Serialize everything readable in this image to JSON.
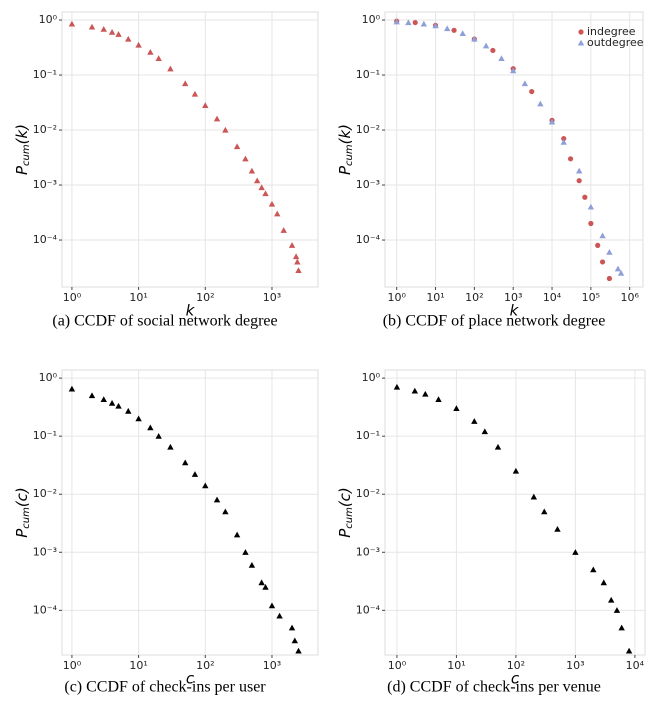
{
  "chart_data": [
    {
      "type": "scatter",
      "caption": "(a) CCDF of social network degree",
      "xlabel": "k",
      "ylabel": [
        "P",
        "cum",
        "(k)"
      ],
      "log_x": true,
      "log_y": true,
      "grid": true,
      "xlim": [
        0.71,
        4900
      ],
      "ylim": [
        1.4e-05,
        1.4
      ],
      "xticks": [
        {
          "value": 1,
          "label": "10⁰"
        },
        {
          "value": 10,
          "label": "10¹"
        },
        {
          "value": 100,
          "label": "10²"
        },
        {
          "value": 1000,
          "label": "10³"
        }
      ],
      "yticks": [
        {
          "value": 1,
          "label": "10⁰"
        },
        {
          "value": 0.1,
          "label": "10⁻¹"
        },
        {
          "value": 0.01,
          "label": "10⁻²"
        },
        {
          "value": 0.001,
          "label": "10⁻³"
        },
        {
          "value": 0.0001,
          "label": "10⁻⁴"
        }
      ],
      "series": [
        {
          "color": "#cc5555",
          "marker": "triangle",
          "x": [
            1,
            2,
            3,
            4,
            5,
            7,
            10,
            15,
            20,
            30,
            50,
            70,
            100,
            150,
            200,
            300,
            400,
            500,
            600,
            700,
            800,
            1000,
            1200,
            1500,
            2000,
            2300,
            2400,
            2500
          ],
          "values": [
            0.85,
            0.75,
            0.68,
            0.6,
            0.55,
            0.45,
            0.35,
            0.26,
            0.2,
            0.13,
            0.07,
            0.045,
            0.028,
            0.016,
            0.01,
            0.005,
            0.003,
            0.0018,
            0.0012,
            0.0009,
            0.0007,
            0.00045,
            0.0003,
            0.00015,
            8e-05,
            5e-05,
            4e-05,
            2.8e-05
          ]
        }
      ]
    },
    {
      "type": "scatter",
      "caption": "(b) CCDF of place network degree",
      "xlabel": "k",
      "ylabel": [
        "P",
        "cum",
        "(k)"
      ],
      "log_x": true,
      "log_y": true,
      "grid": true,
      "legend": "top-right",
      "xlim": [
        0.5,
        2200000
      ],
      "ylim": [
        1.4e-05,
        1.4
      ],
      "xticks": [
        {
          "value": 1,
          "label": "10⁰"
        },
        {
          "value": 10,
          "label": "10¹"
        },
        {
          "value": 100,
          "label": "10²"
        },
        {
          "value": 1000,
          "label": "10³"
        },
        {
          "value": 10000,
          "label": "10⁴"
        },
        {
          "value": 100000,
          "label": "10⁵"
        },
        {
          "value": 1000000,
          "label": "10⁶"
        }
      ],
      "yticks": [
        {
          "value": 1,
          "label": "10⁰"
        },
        {
          "value": 0.1,
          "label": "10⁻¹"
        },
        {
          "value": 0.01,
          "label": "10⁻²"
        },
        {
          "value": 0.001,
          "label": "10⁻³"
        },
        {
          "value": 0.0001,
          "label": "10⁻⁴"
        }
      ],
      "series": [
        {
          "name": "indegree",
          "color": "#cc5555",
          "marker": "circle",
          "x": [
            1,
            3,
            10,
            30,
            100,
            300,
            1000,
            3000,
            10000,
            20000,
            30000,
            50000,
            70000,
            100000,
            150000,
            200000,
            300000
          ],
          "values": [
            0.95,
            0.9,
            0.8,
            0.65,
            0.45,
            0.28,
            0.13,
            0.05,
            0.015,
            0.007,
            0.003,
            0.0012,
            0.0006,
            0.0002,
            8e-05,
            4e-05,
            2e-05
          ]
        },
        {
          "name": "outdegree",
          "color": "#8fa0d8",
          "marker": "triangle",
          "x": [
            1,
            2,
            5,
            10,
            20,
            50,
            100,
            200,
            500,
            1000,
            2000,
            5000,
            10000,
            20000,
            50000,
            100000,
            200000,
            300000,
            500000,
            600000
          ],
          "values": [
            0.93,
            0.9,
            0.85,
            0.79,
            0.7,
            0.57,
            0.45,
            0.34,
            0.2,
            0.12,
            0.07,
            0.03,
            0.014,
            0.006,
            0.0018,
            0.0004,
            0.00012,
            6e-05,
            3e-05,
            2.5e-05
          ]
        }
      ]
    },
    {
      "type": "scatter",
      "caption": "(c) CCDF of check-ins per user",
      "xlabel": "c",
      "ylabel": [
        "P",
        "cum",
        "(c)"
      ],
      "log_x": true,
      "log_y": true,
      "grid": true,
      "xlim": [
        0.71,
        4900
      ],
      "ylim": [
        1.7e-05,
        1.38
      ],
      "xticks": [
        {
          "value": 1,
          "label": "10⁰"
        },
        {
          "value": 10,
          "label": "10¹"
        },
        {
          "value": 100,
          "label": "10²"
        },
        {
          "value": 1000,
          "label": "10³"
        }
      ],
      "yticks": [
        {
          "value": 1,
          "label": "10⁰"
        },
        {
          "value": 0.1,
          "label": "10⁻¹"
        },
        {
          "value": 0.01,
          "label": "10⁻²"
        },
        {
          "value": 0.001,
          "label": "10⁻³"
        },
        {
          "value": 0.0001,
          "label": "10⁻⁴"
        }
      ],
      "series": [
        {
          "color": "#000000",
          "marker": "triangle",
          "x": [
            1,
            2,
            3,
            4,
            5,
            7,
            10,
            15,
            20,
            30,
            50,
            70,
            100,
            150,
            200,
            300,
            400,
            500,
            700,
            800,
            1000,
            1300,
            2000,
            2200,
            2500
          ],
          "values": [
            0.65,
            0.5,
            0.43,
            0.37,
            0.33,
            0.27,
            0.2,
            0.14,
            0.1,
            0.065,
            0.035,
            0.022,
            0.014,
            0.008,
            0.005,
            0.002,
            0.001,
            0.0006,
            0.0003,
            0.00025,
            0.00012,
            8e-05,
            5e-05,
            3e-05,
            2e-05
          ]
        }
      ]
    },
    {
      "type": "scatter",
      "caption": "(d) CCDF of check-ins per venue",
      "xlabel": "c",
      "ylabel": [
        "P",
        "cum",
        "(c)"
      ],
      "log_x": true,
      "log_y": true,
      "grid": true,
      "xlim": [
        0.63,
        14800
      ],
      "ylim": [
        1.7e-05,
        1.38
      ],
      "xticks": [
        {
          "value": 1,
          "label": "10⁰"
        },
        {
          "value": 10,
          "label": "10¹"
        },
        {
          "value": 100,
          "label": "10²"
        },
        {
          "value": 1000,
          "label": "10³"
        },
        {
          "value": 10000,
          "label": "10⁴"
        }
      ],
      "yticks": [
        {
          "value": 1,
          "label": "10⁰"
        },
        {
          "value": 0.1,
          "label": "10⁻¹"
        },
        {
          "value": 0.01,
          "label": "10⁻²"
        },
        {
          "value": 0.001,
          "label": "10⁻³"
        },
        {
          "value": 0.0001,
          "label": "10⁻⁴"
        }
      ],
      "series": [
        {
          "color": "#000000",
          "marker": "triangle",
          "x": [
            1,
            2,
            3,
            5,
            10,
            20,
            30,
            50,
            100,
            200,
            300,
            500,
            1000,
            2000,
            3000,
            4000,
            5000,
            6000,
            8000
          ],
          "values": [
            0.7,
            0.6,
            0.53,
            0.43,
            0.3,
            0.18,
            0.12,
            0.065,
            0.025,
            0.009,
            0.005,
            0.0025,
            0.001,
            0.0005,
            0.0003,
            0.00015,
            0.0001,
            5e-05,
            2e-05
          ]
        }
      ]
    }
  ]
}
